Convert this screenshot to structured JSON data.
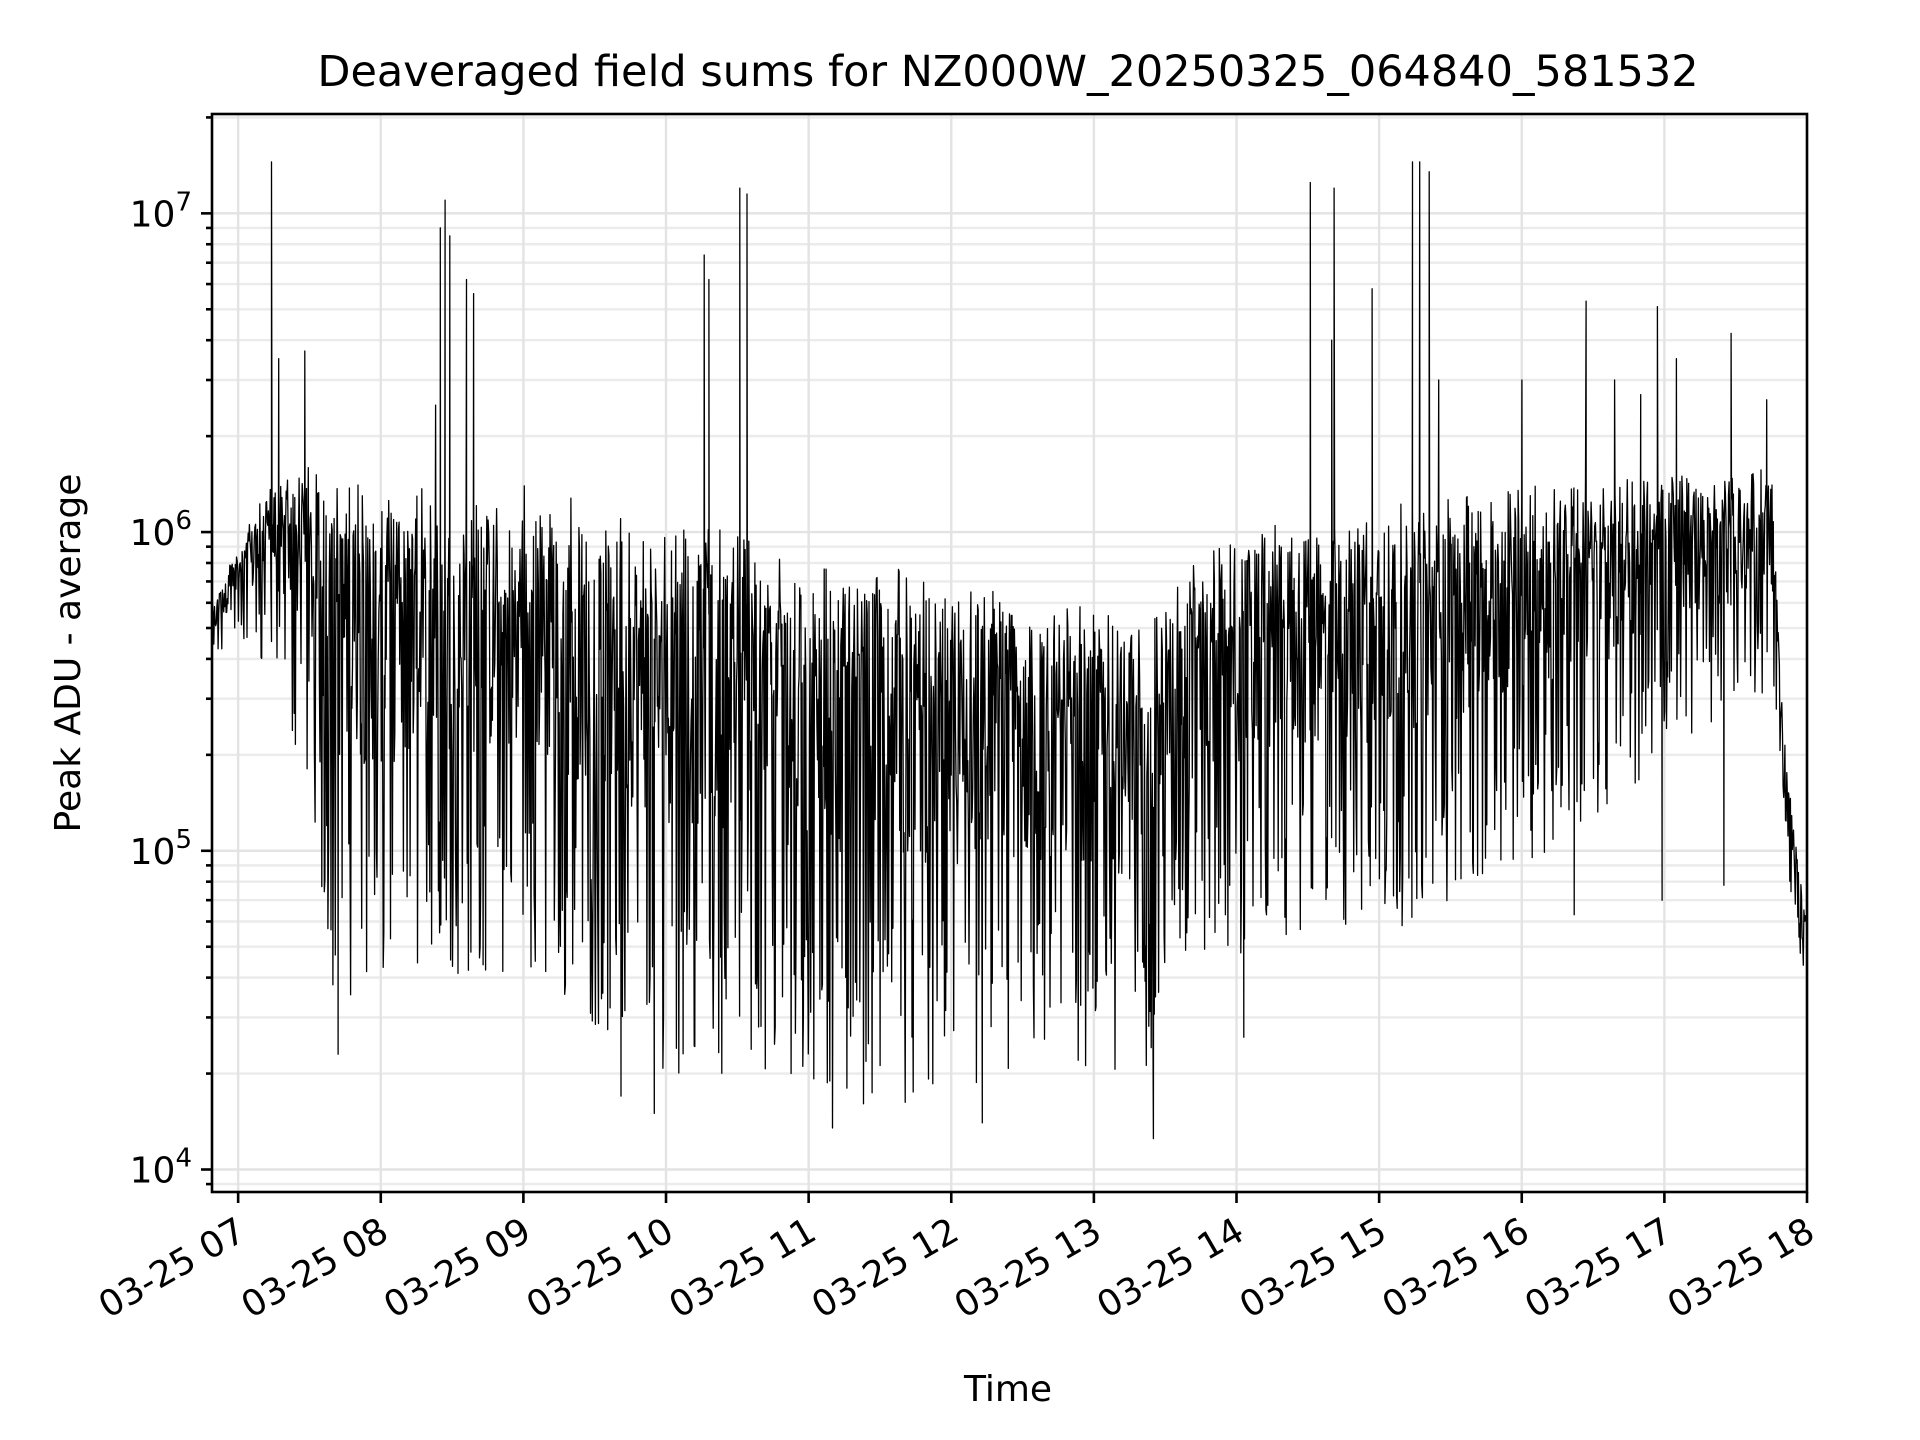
{
  "chart_data": {
    "type": "line",
    "title": "Deaveraged field sums for NZ000W_20250325_064840_581532",
    "xlabel": "Time",
    "ylabel": "Peak ADU - average",
    "yscale": "log",
    "grid": "major and minor",
    "legend": "none",
    "xlim": [
      "03-25 06:49",
      "03-25 18:00"
    ],
    "ylim": [
      8500,
      20500000
    ],
    "x_ticks": [
      "03-25 07",
      "03-25 08",
      "03-25 09",
      "03-25 10",
      "03-25 11",
      "03-25 12",
      "03-25 13",
      "03-25 14",
      "03-25 15",
      "03-25 16",
      "03-25 17",
      "03-25 18"
    ],
    "y_ticks": [
      {
        "value": 10000,
        "base": "10",
        "exp": "4"
      },
      {
        "value": 100000,
        "base": "10",
        "exp": "5"
      },
      {
        "value": 1000000,
        "base": "10",
        "exp": "6"
      },
      {
        "value": 10000000,
        "base": "10",
        "exp": "7"
      }
    ],
    "series": [
      {
        "color": "#000000",
        "envelope": [
          {
            "x": "03-25 06:49",
            "low": 380000,
            "high": 600000
          },
          {
            "x": "03-25 07:00",
            "low": 450000,
            "high": 900000
          },
          {
            "x": "03-25 07:15",
            "low": 350000,
            "high": 1500000
          },
          {
            "x": "03-25 07:30",
            "low": 150000,
            "high": 1600000
          },
          {
            "x": "03-25 07:40",
            "low": 35000,
            "high": 1500000
          },
          {
            "x": "03-25 08:00",
            "low": 35000,
            "high": 1400000
          },
          {
            "x": "03-25 08:30",
            "low": 40000,
            "high": 1400000
          },
          {
            "x": "03-25 09:00",
            "low": 40000,
            "high": 1400000
          },
          {
            "x": "03-25 09:30",
            "low": 28000,
            "high": 1300000
          },
          {
            "x": "03-25 10:00",
            "low": 20000,
            "high": 1100000
          },
          {
            "x": "03-25 10:30",
            "low": 20000,
            "high": 1000000
          },
          {
            "x": "03-25 11:00",
            "low": 16000,
            "high": 850000
          },
          {
            "x": "03-25 11:30",
            "low": 16000,
            "high": 800000
          },
          {
            "x": "03-25 12:00",
            "low": 16000,
            "high": 750000
          },
          {
            "x": "03-25 12:30",
            "low": 18000,
            "high": 700000
          },
          {
            "x": "03-25 13:00",
            "low": 20000,
            "high": 600000
          },
          {
            "x": "03-25 13:20",
            "low": 15000,
            "high": 550000
          },
          {
            "x": "03-25 13:30",
            "low": 40000,
            "high": 700000
          },
          {
            "x": "03-25 14:00",
            "low": 45000,
            "high": 1000000
          },
          {
            "x": "03-25 14:30",
            "low": 55000,
            "high": 1100000
          },
          {
            "x": "03-25 15:00",
            "low": 55000,
            "high": 1200000
          },
          {
            "x": "03-25 15:30",
            "low": 65000,
            "high": 1300000
          },
          {
            "x": "03-25 16:00",
            "low": 90000,
            "high": 1400000
          },
          {
            "x": "03-25 16:30",
            "low": 120000,
            "high": 1500000
          },
          {
            "x": "03-25 17:00",
            "low": 200000,
            "high": 1500000
          },
          {
            "x": "03-25 17:30",
            "low": 280000,
            "high": 1500000
          },
          {
            "x": "03-25 17:45",
            "low": 300000,
            "high": 1600000
          },
          {
            "x": "03-25 17:50",
            "low": 150000,
            "high": 250000
          },
          {
            "x": "03-25 17:55",
            "low": 45000,
            "high": 110000
          },
          {
            "x": "03-25 18:00",
            "low": 35000,
            "high": 60000
          }
        ],
        "spikes": [
          {
            "x": "03-25 07:14",
            "y": 14500000
          },
          {
            "x": "03-25 07:17",
            "y": 3500000
          },
          {
            "x": "03-25 07:28",
            "y": 3700000
          },
          {
            "x": "03-25 08:23",
            "y": 2500000
          },
          {
            "x": "03-25 08:25",
            "y": 9000000
          },
          {
            "x": "03-25 08:27",
            "y": 11000000
          },
          {
            "x": "03-25 08:29",
            "y": 8500000
          },
          {
            "x": "03-25 08:36",
            "y": 6200000
          },
          {
            "x": "03-25 08:39",
            "y": 5600000
          },
          {
            "x": "03-25 10:16",
            "y": 7400000
          },
          {
            "x": "03-25 10:18",
            "y": 6200000
          },
          {
            "x": "03-25 10:31",
            "y": 12000000
          },
          {
            "x": "03-25 10:34",
            "y": 11500000
          },
          {
            "x": "03-25 14:31",
            "y": 12500000
          },
          {
            "x": "03-25 14:40",
            "y": 4000000
          },
          {
            "x": "03-25 14:41",
            "y": 12000000
          },
          {
            "x": "03-25 14:57",
            "y": 5800000
          },
          {
            "x": "03-25 15:14",
            "y": 14500000
          },
          {
            "x": "03-25 15:17",
            "y": 14500000
          },
          {
            "x": "03-25 15:21",
            "y": 13500000
          },
          {
            "x": "03-25 15:25",
            "y": 3000000
          },
          {
            "x": "03-25 16:00",
            "y": 3000000
          },
          {
            "x": "03-25 16:27",
            "y": 5300000
          },
          {
            "x": "03-25 16:39",
            "y": 3000000
          },
          {
            "x": "03-25 16:50",
            "y": 2700000
          },
          {
            "x": "03-25 16:57",
            "y": 5100000
          },
          {
            "x": "03-25 17:05",
            "y": 3500000
          },
          {
            "x": "03-25 17:28",
            "y": 4200000
          },
          {
            "x": "03-25 17:43",
            "y": 2600000
          }
        ],
        "dips": [
          {
            "x": "03-25 07:42",
            "y": 23000
          },
          {
            "x": "03-25 09:41",
            "y": 17000
          },
          {
            "x": "03-25 09:55",
            "y": 15000
          },
          {
            "x": "03-25 11:10",
            "y": 13500
          },
          {
            "x": "03-25 12:13",
            "y": 14000
          },
          {
            "x": "03-25 13:25",
            "y": 12500
          },
          {
            "x": "03-25 14:03",
            "y": 26000
          },
          {
            "x": "03-25 16:22",
            "y": 63000
          },
          {
            "x": "03-25 16:59",
            "y": 70000
          },
          {
            "x": "03-25 17:25",
            "y": 78000
          }
        ]
      }
    ]
  }
}
